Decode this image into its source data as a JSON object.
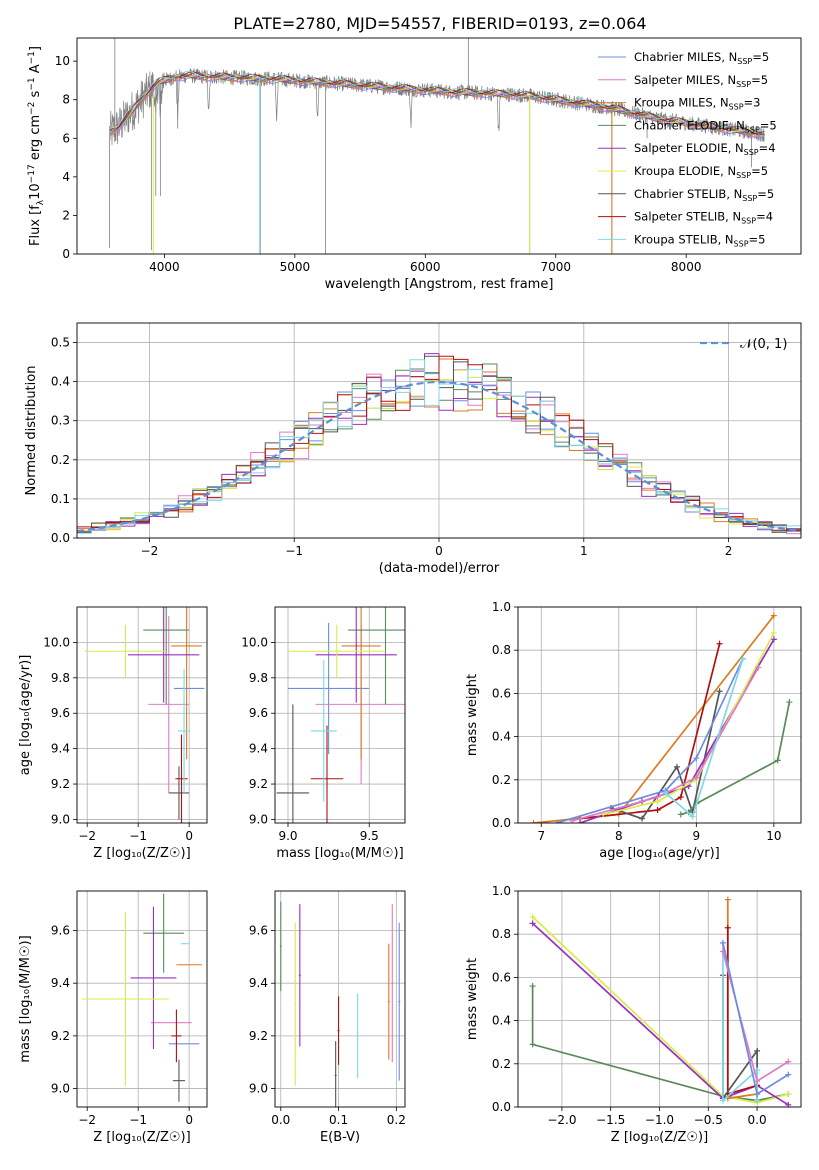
{
  "figure": {
    "title": "PLATE=2780, MJD=54557, FIBERID=0193, z=0.064"
  },
  "legend_entries": [
    {
      "label": "Chabrier MILES, N",
      "sub": "SSP",
      "n": "=5",
      "color": "#6b8ee0"
    },
    {
      "label": "Salpeter MILES, N",
      "sub": "SSP",
      "n": "=5",
      "color": "#e07bc5"
    },
    {
      "label": "Kroupa MILES, N",
      "sub": "SSP",
      "n": "=3",
      "color": "#e07a1f"
    },
    {
      "label": "Chabrier ELODIE, N",
      "sub": "SSP",
      "n": "=5",
      "color": "#5a8a5a"
    },
    {
      "label": "Salpeter ELODIE, N",
      "sub": "SSP",
      "n": "=4",
      "color": "#9a2fc0"
    },
    {
      "label": "Kroupa ELODIE, N",
      "sub": "SSP",
      "n": "=5",
      "color": "#d8ec4a"
    },
    {
      "label": "Chabrier STELIB, N",
      "sub": "SSP",
      "n": "=5",
      "color": "#555555"
    },
    {
      "label": "Salpeter STELIB, N",
      "sub": "SSP",
      "n": "=4",
      "color": "#b01010"
    },
    {
      "label": "Kroupa STELIB, N",
      "sub": "SSP",
      "n": "=5",
      "color": "#7ed8e8"
    }
  ],
  "chart_data": [
    {
      "id": "spectrum",
      "type": "line",
      "title": "PLATE=2780, MJD=54557, FIBERID=0193, z=0.064",
      "xlabel": "wavelength [Angstrom, rest frame]",
      "ylabel_parts": [
        "Flux [f",
        "λ",
        "10",
        "−17",
        " erg cm",
        "−2",
        " s",
        "−1",
        " A",
        "−1",
        "]"
      ],
      "xlim": [
        3330,
        8880
      ],
      "ylim": [
        0,
        11.2
      ],
      "xticks": [
        4000,
        5000,
        6000,
        7000,
        8000
      ],
      "yticks": [
        0,
        2,
        4,
        6,
        8,
        10
      ],
      "continuum_x": [
        3580,
        3650,
        3700,
        3750,
        3800,
        3850,
        3900,
        3950,
        4000,
        4100,
        4200,
        4300,
        4400,
        4500,
        4600,
        4700,
        4800,
        4900,
        5000,
        5200,
        5400,
        5600,
        5800,
        6000,
        6200,
        6400,
        6600,
        6800,
        7000,
        7200,
        7400,
        7600,
        7800,
        8000,
        8200,
        8400,
        8600
      ],
      "continuum_y": [
        6.3,
        6.6,
        7.0,
        7.4,
        7.8,
        8.2,
        8.6,
        8.9,
        9.0,
        9.2,
        9.25,
        9.2,
        9.2,
        9.15,
        9.15,
        9.1,
        9.1,
        9.05,
        9.0,
        8.9,
        8.8,
        8.7,
        8.6,
        8.5,
        8.4,
        8.35,
        8.3,
        8.2,
        8.0,
        7.8,
        7.6,
        7.3,
        7.0,
        6.8,
        6.6,
        6.4,
        6.2
      ],
      "absorption_lines": [
        3934,
        3969,
        4102,
        4340,
        4861,
        5175,
        5890,
        6563
      ],
      "spikes_x": [
        3580,
        3620,
        3900,
        3934,
        3969,
        4102,
        4735,
        5235,
        6330,
        6800,
        7430,
        7700,
        8200,
        8500
      ],
      "spikes_y": [
        0.3,
        11.2,
        0.2,
        3.0,
        3.0,
        6.5,
        0.0,
        0.0,
        11.2,
        0.0,
        0.0,
        6.0,
        6.2,
        4.5
      ]
    },
    {
      "id": "residuals",
      "type": "histogram",
      "xlabel": "(data-model)/error",
      "ylabel": "Normed distribution",
      "xlim": [
        -2.5,
        2.5
      ],
      "ylim": [
        0,
        0.55
      ],
      "xticks": [
        -2,
        -1,
        0,
        1,
        2
      ],
      "yticks": [
        0.0,
        0.1,
        0.2,
        0.3,
        0.4,
        0.5
      ],
      "legend": "𝒩(0, 1)",
      "bin_width": 0.1,
      "bin_start": -2.5
    },
    {
      "id": "age-vs-Z",
      "type": "scatter",
      "xlabel": "Z [log₁₀(Z/Z☉)]",
      "ylabel": "age  [log₁₀(age/yr)]",
      "xlim": [
        -2.2,
        0.35
      ],
      "ylim": [
        8.98,
        10.2
      ],
      "xticks": [
        -2,
        -1,
        0
      ],
      "yticks": [
        9.0,
        9.2,
        9.4,
        9.6,
        9.8,
        10.0
      ],
      "points": [
        {
          "color": "#6b8ee0",
          "x": 0.0,
          "xerr": 0.3,
          "y": 9.74,
          "yerr": 0.0
        },
        {
          "color": "#e07bc5",
          "x": -0.4,
          "xerr": 0.4,
          "y": 9.65,
          "yerr": 0.5
        },
        {
          "color": "#e07a1f",
          "x": -0.05,
          "xerr": 0.3,
          "y": 9.98,
          "yerr": 0.64
        },
        {
          "color": "#5a8a5a",
          "x": -0.45,
          "xerr": 0.45,
          "y": 10.07,
          "yerr": 0.42
        },
        {
          "color": "#9a2fc0",
          "x": -0.5,
          "xerr": 0.7,
          "y": 9.93,
          "yerr": 0.27
        },
        {
          "color": "#d8ec4a",
          "x": -1.25,
          "xerr": 0.8,
          "y": 9.95,
          "yerr": 0.15
        },
        {
          "color": "#555555",
          "x": -0.2,
          "xerr": 0.2,
          "y": 9.15,
          "yerr": 0.15
        },
        {
          "color": "#b01010",
          "x": -0.15,
          "xerr": 0.12,
          "y": 9.23,
          "yerr": 0.25
        },
        {
          "color": "#7ed8e8",
          "x": -0.1,
          "xerr": 0.12,
          "y": 9.5,
          "yerr": 0.35
        }
      ]
    },
    {
      "id": "age-vs-mass",
      "type": "scatter",
      "xlabel": "mass [log₁₀(M/M☉)]",
      "ylabel": "",
      "xlim": [
        8.92,
        9.72
      ],
      "ylim": [
        8.98,
        10.2
      ],
      "xticks": [
        9.0,
        9.5
      ],
      "yticks": [
        9.0,
        9.2,
        9.4,
        9.6,
        9.8,
        10.0
      ],
      "points": [
        {
          "color": "#6b8ee0",
          "x": 9.25,
          "xerr": 0.25,
          "y": 9.74,
          "yerr": 0.37
        },
        {
          "color": "#e07bc5",
          "x": 9.45,
          "xerr": 0.28,
          "y": 9.65,
          "yerr": 0.45
        },
        {
          "color": "#e07a1f",
          "x": 9.45,
          "xerr": 0.12,
          "y": 9.98,
          "yerr": 0.64
        },
        {
          "color": "#5a8a5a",
          "x": 9.6,
          "xerr": 0.23,
          "y": 10.07,
          "yerr": 0.42
        },
        {
          "color": "#9a2fc0",
          "x": 9.42,
          "xerr": 0.25,
          "y": 9.93,
          "yerr": 0.27
        },
        {
          "color": "#d8ec4a",
          "x": 9.3,
          "xerr": 0.3,
          "y": 9.95,
          "yerr": 0.15
        },
        {
          "color": "#555555",
          "x": 9.03,
          "xerr": 0.1,
          "y": 9.15,
          "yerr": 0.5
        },
        {
          "color": "#b01010",
          "x": 9.24,
          "xerr": 0.1,
          "y": 9.23,
          "yerr": 0.3
        },
        {
          "color": "#7ed8e8",
          "x": 9.22,
          "xerr": 0.08,
          "y": 9.5,
          "yerr": 0.4
        }
      ]
    },
    {
      "id": "weight-vs-age",
      "type": "line",
      "xlabel": "age  [log₁₀(age/yr)]",
      "ylabel": "mass weight",
      "xlim": [
        6.7,
        10.35
      ],
      "ylim": [
        0,
        1.0
      ],
      "xticks": [
        7,
        8,
        9,
        10
      ],
      "yticks": [
        0.0,
        0.2,
        0.4,
        0.6,
        0.8,
        1.0
      ],
      "series": [
        {
          "color": "#e07a1f",
          "x": [
            6.9,
            8.0,
            10.0
          ],
          "y": [
            0.0,
            0.04,
            0.96
          ]
        },
        {
          "color": "#b01010",
          "x": [
            7.5,
            8.5,
            8.8,
            9.3
          ],
          "y": [
            0.02,
            0.06,
            0.12,
            0.83
          ]
        },
        {
          "color": "#555555",
          "x": [
            7.9,
            8.3,
            8.75,
            8.95,
            9.3
          ],
          "y": [
            0.07,
            0.02,
            0.26,
            0.05,
            0.61
          ]
        },
        {
          "color": "#5a8a5a",
          "x": [
            8.8,
            8.9,
            9.0,
            10.05,
            10.2
          ],
          "y": [
            0.04,
            0.05,
            0.09,
            0.29,
            0.56
          ]
        },
        {
          "color": "#9a2fc0",
          "x": [
            7.5,
            8.3,
            8.9,
            10.0
          ],
          "y": [
            0.0,
            0.1,
            0.17,
            0.85
          ]
        },
        {
          "color": "#d8ec4a",
          "x": [
            7.8,
            8.5,
            9.0,
            10.0
          ],
          "y": [
            0.04,
            0.1,
            0.2,
            0.88
          ]
        },
        {
          "color": "#e07bc5",
          "x": [
            7.4,
            8.5,
            9.0,
            9.8
          ],
          "y": [
            0.01,
            0.12,
            0.21,
            0.72
          ]
        },
        {
          "color": "#6b8ee0",
          "x": [
            7.2,
            8.6,
            9.0,
            9.6
          ],
          "y": [
            0.0,
            0.15,
            0.3,
            0.76
          ]
        },
        {
          "color": "#7ed8e8",
          "x": [
            8.6,
            8.95,
            9.6
          ],
          "y": [
            0.14,
            0.03,
            0.76
          ]
        }
      ]
    },
    {
      "id": "mass-vs-Z",
      "type": "scatter",
      "xlabel": "Z [log₁₀(Z/Z☉)]",
      "ylabel": "mass [log₁₀(M/M☉)]",
      "xlim": [
        -2.2,
        0.35
      ],
      "ylim": [
        8.93,
        9.75
      ],
      "xticks": [
        -2,
        -1,
        0
      ],
      "yticks": [
        9.0,
        9.2,
        9.4,
        9.6
      ],
      "points": [
        {
          "color": "#6b8ee0",
          "x": -0.1,
          "xerr": 0.3,
          "y": 9.17,
          "yerr": 0.0
        },
        {
          "color": "#e07bc5",
          "x": -0.35,
          "xerr": 0.4,
          "y": 9.25,
          "yerr": 0.0
        },
        {
          "color": "#e07a1f",
          "x": 0.0,
          "xerr": 0.25,
          "y": 9.47,
          "yerr": 0.0
        },
        {
          "color": "#5a8a5a",
          "x": -0.5,
          "xerr": 0.4,
          "y": 9.59,
          "yerr": 0.15
        },
        {
          "color": "#9a2fc0",
          "x": -0.7,
          "xerr": 0.45,
          "y": 9.42,
          "yerr": 0.27
        },
        {
          "color": "#d8ec4a",
          "x": -1.25,
          "xerr": 0.85,
          "y": 9.34,
          "yerr": 0.33
        },
        {
          "color": "#555555",
          "x": -0.2,
          "xerr": 0.12,
          "y": 9.03,
          "yerr": 0.08
        },
        {
          "color": "#b01010",
          "x": -0.25,
          "xerr": 0.1,
          "y": 9.2,
          "yerr": 0.1
        },
        {
          "color": "#7ed8e8",
          "x": -0.08,
          "xerr": 0.08,
          "y": 9.55,
          "yerr": 0.0
        }
      ]
    },
    {
      "id": "mass-vs-EBV",
      "type": "scatter",
      "xlabel": "E(B-V)",
      "ylabel": "",
      "xlim": [
        -0.01,
        0.215
      ],
      "ylim": [
        8.93,
        9.75
      ],
      "xticks": [
        0.0,
        0.1,
        0.2
      ],
      "yticks": [
        9.0,
        9.2,
        9.4,
        9.6
      ],
      "points": [
        {
          "color": "#5a8a5a",
          "x": 0.0,
          "y": 9.54,
          "yerr": 0.17
        },
        {
          "color": "#d8ec4a",
          "x": 0.025,
          "y": 9.32,
          "yerr": 0.31
        },
        {
          "color": "#9a2fc0",
          "x": 0.033,
          "y": 9.43,
          "yerr": 0.27
        },
        {
          "color": "#555555",
          "x": 0.095,
          "y": 9.05,
          "yerr": 0.13
        },
        {
          "color": "#b01010",
          "x": 0.1,
          "y": 9.22,
          "yerr": 0.13
        },
        {
          "color": "#7ed8e8",
          "x": 0.133,
          "y": 9.2,
          "yerr": 0.16
        },
        {
          "color": "#e07a1f",
          "x": 0.187,
          "y": 9.33,
          "yerr": 0.22
        },
        {
          "color": "#e07bc5",
          "x": 0.193,
          "y": 9.4,
          "yerr": 0.3
        },
        {
          "color": "#6b8ee0",
          "x": 0.205,
          "y": 9.33,
          "yerr": 0.3
        }
      ]
    },
    {
      "id": "weight-vs-Z",
      "type": "line",
      "xlabel": "Z [log₁₀(Z/Z☉)]",
      "ylabel": "mass weight",
      "xlim": [
        -2.45,
        0.45
      ],
      "ylim": [
        0,
        1.0
      ],
      "xticks": [
        -2.0,
        -1.5,
        -1.0,
        -0.5,
        0.0
      ],
      "xtick_labels": [
        "−2.0",
        "−1.5",
        "−1.0",
        "−0.5",
        "0.0"
      ],
      "yticks": [
        0.0,
        0.2,
        0.4,
        0.6,
        0.8,
        1.0
      ],
      "series": [
        {
          "color": "#5a8a5a",
          "x": [
            -2.3,
            -2.3,
            -0.35,
            0.0,
            0.32
          ],
          "y": [
            0.56,
            0.29,
            0.05,
            0.03,
            0.06
          ]
        },
        {
          "color": "#d8ec4a",
          "x": [
            -2.3,
            -0.35,
            0.0,
            0.32
          ],
          "y": [
            0.88,
            0.05,
            0.02,
            0.06
          ]
        },
        {
          "color": "#9a2fc0",
          "x": [
            -2.3,
            -0.35,
            0.0,
            0.32
          ],
          "y": [
            0.85,
            0.04,
            0.1,
            0.01
          ]
        },
        {
          "color": "#e07a1f",
          "x": [
            -0.3,
            -0.3,
            0.0
          ],
          "y": [
            0.96,
            0.04,
            0.06
          ]
        },
        {
          "color": "#b01010",
          "x": [
            -0.3,
            -0.3,
            0.0
          ],
          "y": [
            0.83,
            0.06,
            0.1
          ]
        },
        {
          "color": "#555555",
          "x": [
            -0.35,
            -0.35,
            0.0,
            0.0
          ],
          "y": [
            0.61,
            0.04,
            0.26,
            0.03
          ]
        },
        {
          "color": "#7ed8e8",
          "x": [
            -0.35,
            -0.35,
            0.0,
            0.0
          ],
          "y": [
            0.76,
            0.03,
            0.17,
            0.03
          ]
        },
        {
          "color": "#e07bc5",
          "x": [
            -0.35,
            0.0,
            0.32
          ],
          "y": [
            0.72,
            0.12,
            0.21
          ]
        },
        {
          "color": "#6b8ee0",
          "x": [
            -0.35,
            0.0,
            0.32
          ],
          "y": [
            0.76,
            0.06,
            0.15
          ]
        }
      ]
    }
  ]
}
